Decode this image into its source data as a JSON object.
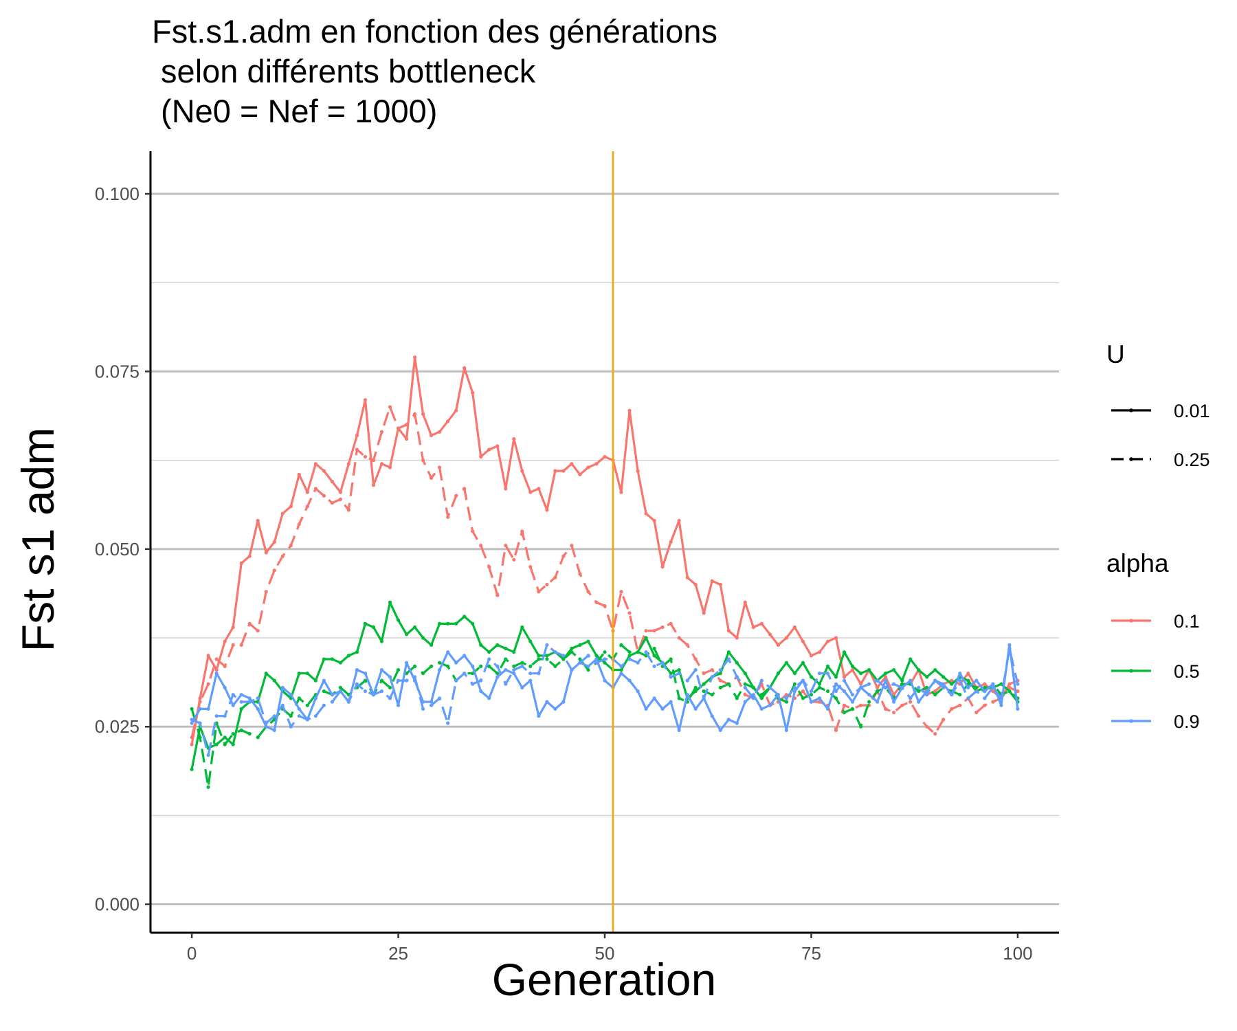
{
  "chart_data": {
    "type": "line",
    "title_lines": [
      "Fst.s1.adm en fonction des générations",
      " selon différents bottleneck",
      " (Ne0 = Nef = 1000)"
    ],
    "xlabel": "Generation",
    "ylabel": "Fst s1 adm",
    "xlim": [
      -5,
      105
    ],
    "ylim": [
      -0.004,
      0.106
    ],
    "x_ticks": [
      0,
      25,
      50,
      75,
      100
    ],
    "x_tick_labels": [
      "0",
      "25",
      "50",
      "75",
      "100"
    ],
    "y_ticks": [
      0,
      0.025,
      0.05,
      0.075,
      0.1
    ],
    "y_tick_labels": [
      "0.000",
      "0.025",
      "0.050",
      "0.075",
      "0.100"
    ],
    "y_minor_grid": [
      0.0125,
      0.0375,
      0.0625,
      0.0875
    ],
    "grid": true,
    "vline": {
      "x": 51,
      "color": "#FFA500"
    },
    "legend": {
      "placement": "right",
      "U": {
        "title": "U",
        "entries": [
          "0.01",
          "0.25"
        ]
      },
      "alpha": {
        "title": "alpha",
        "entries": [
          "0.1",
          "0.5",
          "0.9"
        ],
        "colors": [
          "#F8766D",
          "#00BA38",
          "#619CFF"
        ]
      }
    },
    "series": [
      {
        "alpha": "0.1",
        "U": "0.01",
        "x_start": 0,
        "values": [
          0.0225,
          0.029,
          0.035,
          0.033,
          0.037,
          0.039,
          0.048,
          0.049,
          0.054,
          0.0495,
          0.051,
          0.055,
          0.056,
          0.0605,
          0.058,
          0.062,
          0.061,
          0.0595,
          0.058,
          0.062,
          0.066,
          0.071,
          0.059,
          0.062,
          0.0615,
          0.067,
          0.0655,
          0.077,
          0.069,
          0.066,
          0.0665,
          0.068,
          0.0695,
          0.0755,
          0.072,
          0.063,
          0.064,
          0.0645,
          0.0585,
          0.0655,
          0.061,
          0.058,
          0.0585,
          0.0555,
          0.061,
          0.061,
          0.062,
          0.0605,
          0.0615,
          0.062,
          0.063,
          0.0625,
          0.058,
          0.0695,
          0.061,
          0.055,
          0.054,
          0.0475,
          0.051,
          0.054,
          0.046,
          0.045,
          0.041,
          0.0455,
          0.045,
          0.0385,
          0.0375,
          0.0425,
          0.039,
          0.0395,
          0.038,
          0.0365,
          0.0375,
          0.039,
          0.037,
          0.035,
          0.0355,
          0.037,
          0.0375,
          0.032,
          0.033,
          0.031,
          0.033,
          0.0305,
          0.032,
          0.0295,
          0.031,
          0.031,
          0.033,
          0.0295,
          0.03,
          0.031,
          0.0315,
          0.031,
          0.0325,
          0.0305,
          0.031,
          0.03,
          0.029,
          0.031,
          0.0315
        ]
      },
      {
        "alpha": "0.1",
        "U": "0.25",
        "x_start": 0,
        "values": [
          0.0235,
          0.0285,
          0.031,
          0.0345,
          0.0335,
          0.0365,
          0.0365,
          0.0395,
          0.0385,
          0.044,
          0.047,
          0.049,
          0.0505,
          0.0535,
          0.056,
          0.0585,
          0.0575,
          0.0565,
          0.057,
          0.0555,
          0.064,
          0.063,
          0.0625,
          0.0665,
          0.07,
          0.067,
          0.0675,
          0.069,
          0.0625,
          0.06,
          0.0615,
          0.0545,
          0.0575,
          0.0585,
          0.0525,
          0.0505,
          0.0475,
          0.0435,
          0.0505,
          0.0485,
          0.0525,
          0.0475,
          0.044,
          0.045,
          0.046,
          0.049,
          0.0505,
          0.0465,
          0.044,
          0.0425,
          0.042,
          0.0385,
          0.044,
          0.041,
          0.0355,
          0.0385,
          0.0385,
          0.039,
          0.0395,
          0.0375,
          0.0365,
          0.0345,
          0.0325,
          0.033,
          0.0315,
          0.031,
          0.032,
          0.0295,
          0.029,
          0.031,
          0.028,
          0.0285,
          0.0295,
          0.029,
          0.03,
          0.0285,
          0.0285,
          0.028,
          0.0245,
          0.028,
          0.0275,
          0.028,
          0.028,
          0.03,
          0.0275,
          0.027,
          0.028,
          0.0285,
          0.0265,
          0.025,
          0.024,
          0.026,
          0.0275,
          0.028,
          0.029,
          0.027,
          0.028,
          0.0285,
          0.029,
          0.0305,
          0.03
        ]
      },
      {
        "alpha": "0.5",
        "U": "0.01",
        "x_start": 0,
        "values": [
          0.019,
          0.025,
          0.022,
          0.0225,
          0.0235,
          0.0225,
          0.0275,
          0.0285,
          0.0285,
          0.0325,
          0.0315,
          0.03,
          0.029,
          0.0325,
          0.0325,
          0.0315,
          0.0345,
          0.0345,
          0.034,
          0.035,
          0.0355,
          0.0395,
          0.039,
          0.037,
          0.0425,
          0.04,
          0.038,
          0.039,
          0.0375,
          0.0365,
          0.0395,
          0.0395,
          0.0395,
          0.0405,
          0.0395,
          0.0365,
          0.0355,
          0.0365,
          0.036,
          0.0355,
          0.039,
          0.037,
          0.035,
          0.035,
          0.0355,
          0.0345,
          0.036,
          0.0365,
          0.037,
          0.035,
          0.034,
          0.033,
          0.033,
          0.035,
          0.0355,
          0.0375,
          0.035,
          0.034,
          0.0325,
          0.033,
          0.029,
          0.03,
          0.031,
          0.032,
          0.0325,
          0.0355,
          0.034,
          0.0325,
          0.0305,
          0.029,
          0.0305,
          0.0325,
          0.034,
          0.0325,
          0.034,
          0.032,
          0.031,
          0.0335,
          0.032,
          0.0355,
          0.0335,
          0.0325,
          0.033,
          0.0315,
          0.0325,
          0.033,
          0.0315,
          0.0345,
          0.033,
          0.032,
          0.033,
          0.032,
          0.031,
          0.032,
          0.0315,
          0.03,
          0.0305,
          0.0305,
          0.031,
          0.03,
          0.0285
        ]
      },
      {
        "alpha": "0.5",
        "U": "0.25",
        "x_start": 0,
        "values": [
          0.0275,
          0.0235,
          0.0165,
          0.0255,
          0.0225,
          0.024,
          0.0245,
          0.024,
          0.0235,
          0.025,
          0.026,
          0.0275,
          0.0265,
          0.029,
          0.028,
          0.0295,
          0.03,
          0.0295,
          0.0305,
          0.0295,
          0.0305,
          0.0315,
          0.0295,
          0.0315,
          0.0305,
          0.033,
          0.0325,
          0.0335,
          0.0325,
          0.0335,
          0.034,
          0.0335,
          0.0315,
          0.0325,
          0.0325,
          0.0335,
          0.0335,
          0.0325,
          0.0345,
          0.0335,
          0.034,
          0.0335,
          0.0345,
          0.0345,
          0.0335,
          0.0345,
          0.0355,
          0.0345,
          0.033,
          0.034,
          0.0355,
          0.0345,
          0.0365,
          0.0355,
          0.0355,
          0.035,
          0.036,
          0.0335,
          0.0345,
          0.029,
          0.0285,
          0.0305,
          0.03,
          0.0295,
          0.0305,
          0.031,
          0.029,
          0.031,
          0.0305,
          0.0295,
          0.0305,
          0.029,
          0.0285,
          0.031,
          0.029,
          0.0295,
          0.0305,
          0.03,
          0.029,
          0.027,
          0.0275,
          0.025,
          0.0285,
          0.03,
          0.0305,
          0.029,
          0.031,
          0.031,
          0.03,
          0.0305,
          0.0295,
          0.0305,
          0.03,
          0.0295,
          0.031,
          0.0305,
          0.03,
          0.031,
          0.0295,
          0.03,
          0.029
        ]
      },
      {
        "alpha": "0.9",
        "U": "0.01",
        "x_start": 0,
        "values": [
          0.0255,
          0.0275,
          0.0275,
          0.0325,
          0.0305,
          0.028,
          0.0295,
          0.029,
          0.0275,
          0.025,
          0.0245,
          0.0305,
          0.0295,
          0.0275,
          0.026,
          0.029,
          0.0315,
          0.0295,
          0.03,
          0.0285,
          0.033,
          0.0325,
          0.0295,
          0.033,
          0.032,
          0.028,
          0.034,
          0.0315,
          0.0285,
          0.0285,
          0.033,
          0.0355,
          0.034,
          0.035,
          0.0335,
          0.03,
          0.029,
          0.032,
          0.033,
          0.0325,
          0.0305,
          0.0315,
          0.0265,
          0.0285,
          0.0275,
          0.0285,
          0.033,
          0.034,
          0.0335,
          0.0345,
          0.0315,
          0.0305,
          0.0325,
          0.0315,
          0.03,
          0.0275,
          0.029,
          0.0275,
          0.0285,
          0.0245,
          0.0295,
          0.0275,
          0.029,
          0.0265,
          0.0245,
          0.026,
          0.0255,
          0.0285,
          0.0295,
          0.0275,
          0.028,
          0.0295,
          0.0245,
          0.03,
          0.0315,
          0.0285,
          0.029,
          0.0275,
          0.031,
          0.03,
          0.0285,
          0.0305,
          0.0295,
          0.0285,
          0.0315,
          0.0285,
          0.0305,
          0.0315,
          0.0285,
          0.03,
          0.0315,
          0.031,
          0.0295,
          0.0325,
          0.0305,
          0.0315,
          0.03,
          0.031,
          0.028,
          0.0365,
          0.0275
        ]
      },
      {
        "alpha": "0.9",
        "U": "0.25",
        "x_start": 0,
        "values": [
          0.026,
          0.0255,
          0.021,
          0.0265,
          0.0265,
          0.0295,
          0.0285,
          0.0285,
          0.029,
          0.0255,
          0.0265,
          0.028,
          0.025,
          0.0265,
          0.026,
          0.0265,
          0.028,
          0.0285,
          0.03,
          0.0285,
          0.031,
          0.03,
          0.0295,
          0.03,
          0.029,
          0.0315,
          0.0315,
          0.032,
          0.0275,
          0.028,
          0.029,
          0.0255,
          0.0315,
          0.0325,
          0.031,
          0.0315,
          0.0345,
          0.0335,
          0.031,
          0.033,
          0.0335,
          0.0325,
          0.0325,
          0.0365,
          0.0355,
          0.035,
          0.033,
          0.034,
          0.035,
          0.034,
          0.0345,
          0.0345,
          0.0335,
          0.0345,
          0.034,
          0.0355,
          0.0335,
          0.034,
          0.032,
          0.0325,
          0.0315,
          0.033,
          0.029,
          0.032,
          0.033,
          0.0345,
          0.032,
          0.0305,
          0.029,
          0.0315,
          0.0305,
          0.0295,
          0.029,
          0.0305,
          0.0315,
          0.03,
          0.0325,
          0.0325,
          0.03,
          0.0315,
          0.0295,
          0.0305,
          0.031,
          0.0315,
          0.0305,
          0.031,
          0.0305,
          0.029,
          0.0305,
          0.0295,
          0.0315,
          0.0305,
          0.0295,
          0.0315,
          0.029,
          0.03,
          0.029,
          0.0305,
          0.029,
          0.036,
          0.031
        ]
      }
    ]
  }
}
